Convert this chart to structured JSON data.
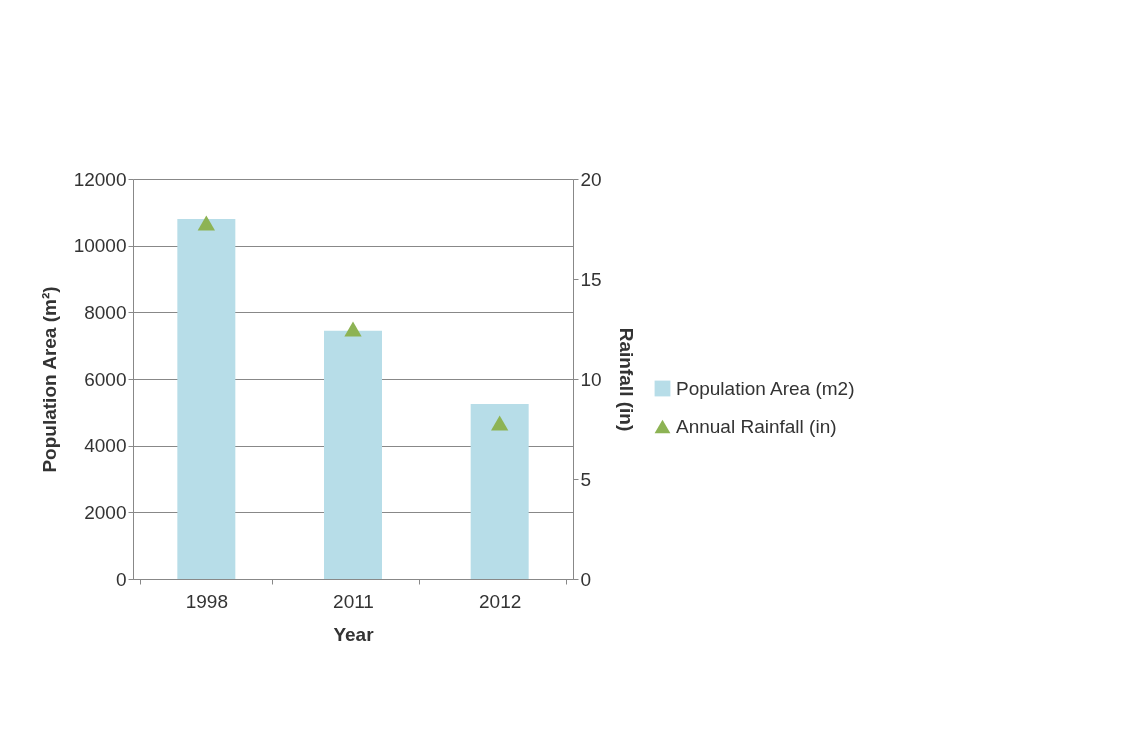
{
  "chart_data": {
    "type": "bar",
    "xlabel": "Year",
    "ylabel": "Population Area (m²)",
    "y2label": "Rainfall (in)",
    "categories": [
      "1998",
      "2011",
      "2012"
    ],
    "series": [
      {
        "name": "Population Area (m2)",
        "color": "#b7dde8",
        "values": [
          10800,
          7450,
          5250
        ]
      },
      {
        "name": "Annual Rainfall (in)",
        "type": "scatter",
        "axis": "y2",
        "marker": "triangle",
        "color": "#8db354",
        "values": [
          17.8,
          12.5,
          7.8
        ]
      }
    ],
    "ylim": [
      0,
      12000
    ],
    "yticks": [
      0,
      2000,
      4000,
      6000,
      8000,
      10000,
      12000
    ],
    "y2lim": [
      0,
      20
    ],
    "y2ticks": [
      0,
      5,
      10,
      15,
      20
    ],
    "grid": "y",
    "legend": "right"
  }
}
